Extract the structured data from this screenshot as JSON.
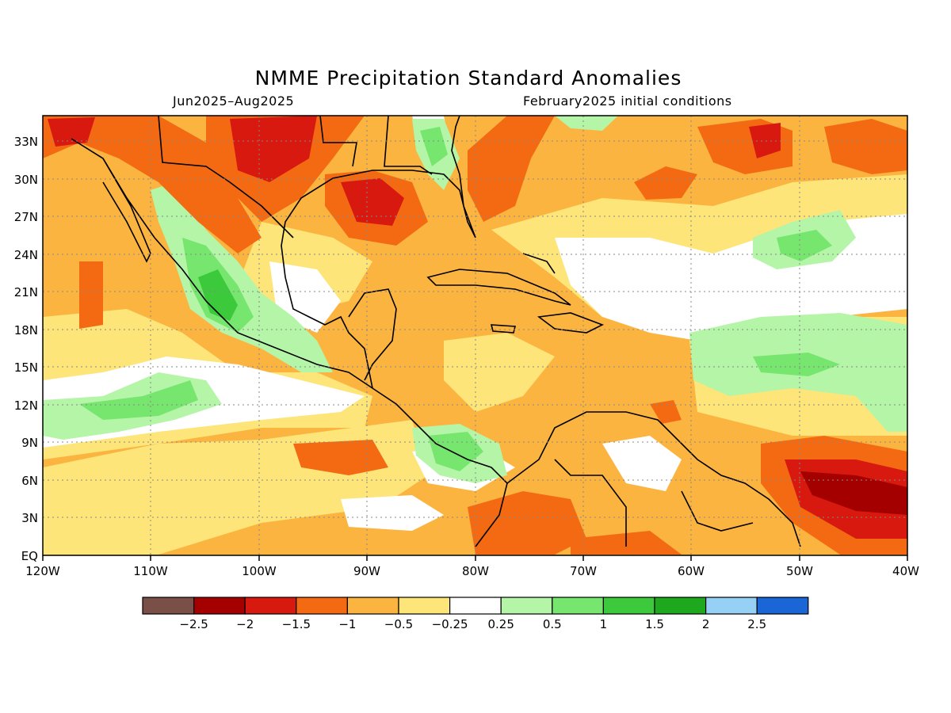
{
  "title": "NMME Precipitation Standard Anomalies",
  "subtitle_left": "Jun2025–Aug2025",
  "subtitle_right": "February2025 initial conditions",
  "lat_ticks": [
    "33N",
    "30N",
    "27N",
    "24N",
    "21N",
    "18N",
    "15N",
    "12N",
    "9N",
    "6N",
    "3N",
    "EQ"
  ],
  "lon_ticks": [
    "120W",
    "110W",
    "100W",
    "90W",
    "80W",
    "70W",
    "60W",
    "50W",
    "40W"
  ],
  "colorbar": {
    "colors": [
      "#7a4f47",
      "#a50000",
      "#d7190f",
      "#f46a13",
      "#fbb440",
      "#fde57a",
      "#ffffff",
      "#b5f5a7",
      "#77e66f",
      "#3cc93c",
      "#1ea81e",
      "#97d0f5",
      "#1b66d6"
    ],
    "labels": [
      "−2.5",
      "−2",
      "−1.5",
      "−1",
      "−0.5",
      "−0.25",
      "0.25",
      "0.5",
      "1",
      "1.5",
      "2",
      "2.5"
    ]
  },
  "legend_palette": {
    "strong_negative": "#a50000",
    "neg_2": "#d7190f",
    "neg_15": "#f46a13",
    "neg_1": "#fbb440",
    "neg_05": "#fde57a",
    "neutral": "#ffffff",
    "pos_025": "#b5f5a7",
    "pos_05": "#77e66f",
    "pos_1": "#3cc93c"
  }
}
